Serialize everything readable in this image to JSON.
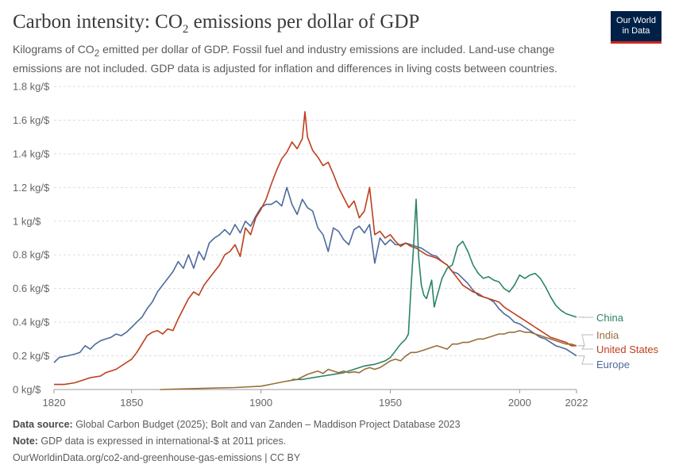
{
  "header": {
    "title_main": "Carbon intensity: CO",
    "title_sub": "2",
    "title_rest": " emissions per dollar of GDP",
    "subtitle_a": "Kilograms of CO",
    "subtitle_sub": "2",
    "subtitle_b": " emitted per dollar of GDP. Fossil fuel and industry emissions are included. Land-use change emissions are not included. GDP data is adjusted for inflation and differences in living costs between countries."
  },
  "logo": {
    "line1": "Our World",
    "line2": "in Data"
  },
  "colors": {
    "China": "#2c8465",
    "India": "#996d39",
    "United States": "#be3e1c",
    "Europe": "#4c6a9c",
    "grid": "#dddddd",
    "axis": "#666666"
  },
  "chart_data": {
    "type": "line",
    "title": "Carbon intensity: CO2 emissions per dollar of GDP",
    "ylabel": "kg/$",
    "xlim": [
      1820,
      2022
    ],
    "ylim": [
      0,
      1.8
    ],
    "x_ticks": [
      "1820",
      "1850",
      "1900",
      "1950",
      "2000",
      "2022"
    ],
    "y_ticks": [
      "0 kg/$",
      "0.2 kg/$",
      "0.4 kg/$",
      "0.6 kg/$",
      "0.8 kg/$",
      "1 kg/$",
      "1.2 kg/$",
      "1.4 kg/$",
      "1.6 kg/$",
      "1.8 kg/$"
    ],
    "series": [
      {
        "name": "Europe",
        "x": [
          1820,
          1822,
          1825,
          1828,
          1830,
          1832,
          1834,
          1836,
          1838,
          1840,
          1842,
          1844,
          1846,
          1848,
          1850,
          1852,
          1854,
          1856,
          1858,
          1860,
          1862,
          1864,
          1866,
          1868,
          1870,
          1872,
          1874,
          1876,
          1878,
          1880,
          1882,
          1884,
          1886,
          1888,
          1890,
          1892,
          1894,
          1896,
          1898,
          1900,
          1902,
          1904,
          1906,
          1908,
          1910,
          1912,
          1914,
          1916,
          1918,
          1920,
          1922,
          1924,
          1926,
          1928,
          1930,
          1932,
          1934,
          1936,
          1938,
          1940,
          1942,
          1944,
          1946,
          1948,
          1950,
          1952,
          1954,
          1956,
          1958,
          1960,
          1962,
          1964,
          1966,
          1968,
          1970,
          1972,
          1974,
          1976,
          1978,
          1980,
          1982,
          1984,
          1986,
          1988,
          1990,
          1992,
          1994,
          1996,
          1998,
          2000,
          2002,
          2004,
          2006,
          2008,
          2010,
          2012,
          2014,
          2016,
          2018,
          2020,
          2022
        ],
        "y": [
          0.16,
          0.19,
          0.2,
          0.21,
          0.22,
          0.26,
          0.24,
          0.27,
          0.29,
          0.3,
          0.31,
          0.33,
          0.32,
          0.34,
          0.37,
          0.4,
          0.43,
          0.48,
          0.52,
          0.58,
          0.62,
          0.66,
          0.7,
          0.76,
          0.72,
          0.8,
          0.72,
          0.82,
          0.77,
          0.87,
          0.9,
          0.92,
          0.95,
          0.92,
          0.98,
          0.93,
          1.0,
          0.97,
          1.03,
          1.08,
          1.1,
          1.1,
          1.12,
          1.09,
          1.2,
          1.1,
          1.04,
          1.13,
          1.08,
          1.06,
          0.96,
          0.92,
          0.82,
          0.96,
          0.94,
          0.89,
          0.86,
          0.95,
          0.97,
          0.93,
          0.98,
          0.75,
          0.9,
          0.86,
          0.89,
          0.86,
          0.86,
          0.87,
          0.86,
          0.85,
          0.84,
          0.82,
          0.8,
          0.79,
          0.76,
          0.74,
          0.7,
          0.69,
          0.66,
          0.63,
          0.59,
          0.56,
          0.55,
          0.54,
          0.52,
          0.48,
          0.45,
          0.43,
          0.4,
          0.39,
          0.37,
          0.35,
          0.33,
          0.31,
          0.3,
          0.28,
          0.26,
          0.25,
          0.24,
          0.22,
          0.2
        ]
      },
      {
        "name": "United States",
        "x": [
          1820,
          1824,
          1828,
          1830,
          1834,
          1838,
          1840,
          1844,
          1848,
          1850,
          1852,
          1854,
          1856,
          1858,
          1860,
          1862,
          1864,
          1866,
          1868,
          1870,
          1872,
          1874,
          1876,
          1878,
          1880,
          1882,
          1884,
          1886,
          1888,
          1890,
          1892,
          1894,
          1896,
          1898,
          1900,
          1902,
          1904,
          1906,
          1908,
          1910,
          1912,
          1914,
          1916,
          1917,
          1918,
          1920,
          1922,
          1924,
          1926,
          1928,
          1930,
          1932,
          1934,
          1936,
          1938,
          1940,
          1942,
          1944,
          1946,
          1948,
          1950,
          1952,
          1954,
          1956,
          1958,
          1960,
          1962,
          1964,
          1966,
          1968,
          1970,
          1972,
          1974,
          1976,
          1978,
          1980,
          1982,
          1984,
          1986,
          1988,
          1990,
          1992,
          1994,
          1996,
          1998,
          2000,
          2002,
          2004,
          2006,
          2008,
          2010,
          2012,
          2014,
          2016,
          2018,
          2020,
          2022
        ],
        "y": [
          0.03,
          0.03,
          0.04,
          0.05,
          0.07,
          0.08,
          0.1,
          0.12,
          0.16,
          0.18,
          0.22,
          0.27,
          0.32,
          0.34,
          0.35,
          0.33,
          0.36,
          0.35,
          0.42,
          0.48,
          0.54,
          0.58,
          0.56,
          0.62,
          0.66,
          0.7,
          0.74,
          0.8,
          0.82,
          0.86,
          0.79,
          0.96,
          0.92,
          1.02,
          1.07,
          1.13,
          1.22,
          1.3,
          1.37,
          1.41,
          1.47,
          1.43,
          1.49,
          1.65,
          1.5,
          1.42,
          1.38,
          1.33,
          1.35,
          1.28,
          1.2,
          1.14,
          1.08,
          1.12,
          1.02,
          1.06,
          1.2,
          0.92,
          0.94,
          0.9,
          0.92,
          0.88,
          0.85,
          0.87,
          0.85,
          0.84,
          0.82,
          0.8,
          0.79,
          0.78,
          0.76,
          0.74,
          0.7,
          0.66,
          0.62,
          0.6,
          0.58,
          0.57,
          0.55,
          0.54,
          0.53,
          0.52,
          0.49,
          0.47,
          0.45,
          0.43,
          0.41,
          0.39,
          0.37,
          0.35,
          0.33,
          0.31,
          0.3,
          0.29,
          0.28,
          0.26,
          0.26
        ]
      },
      {
        "name": "China",
        "x": [
          1912,
          1916,
          1920,
          1924,
          1928,
          1932,
          1936,
          1940,
          1944,
          1948,
          1950,
          1952,
          1954,
          1956,
          1957,
          1958,
          1959,
          1960,
          1961,
          1962,
          1963,
          1964,
          1966,
          1967,
          1968,
          1970,
          1972,
          1974,
          1976,
          1978,
          1980,
          1982,
          1984,
          1986,
          1988,
          1990,
          1992,
          1994,
          1996,
          1998,
          2000,
          2002,
          2004,
          2006,
          2008,
          2010,
          2012,
          2014,
          2016,
          2018,
          2020,
          2022
        ],
        "y": [
          0.06,
          0.06,
          0.07,
          0.08,
          0.09,
          0.1,
          0.12,
          0.14,
          0.15,
          0.17,
          0.19,
          0.23,
          0.27,
          0.3,
          0.33,
          0.6,
          0.85,
          1.13,
          0.78,
          0.62,
          0.56,
          0.54,
          0.65,
          0.49,
          0.55,
          0.66,
          0.72,
          0.74,
          0.85,
          0.88,
          0.82,
          0.74,
          0.69,
          0.66,
          0.67,
          0.65,
          0.64,
          0.6,
          0.58,
          0.62,
          0.68,
          0.66,
          0.68,
          0.69,
          0.66,
          0.61,
          0.55,
          0.5,
          0.47,
          0.45,
          0.44,
          0.43
        ]
      },
      {
        "name": "India",
        "x": [
          1861,
          1870,
          1880,
          1890,
          1900,
          1905,
          1910,
          1914,
          1916,
          1918,
          1920,
          1922,
          1924,
          1926,
          1928,
          1930,
          1932,
          1934,
          1936,
          1938,
          1940,
          1942,
          1944,
          1946,
          1948,
          1950,
          1952,
          1954,
          1956,
          1958,
          1960,
          1962,
          1964,
          1966,
          1968,
          1970,
          1972,
          1974,
          1976,
          1978,
          1980,
          1982,
          1984,
          1986,
          1988,
          1990,
          1992,
          1994,
          1996,
          1998,
          2000,
          2002,
          2004,
          2006,
          2008,
          2010,
          2012,
          2014,
          2016,
          2018,
          2020,
          2022
        ],
        "y": [
          0.0,
          0.004,
          0.008,
          0.012,
          0.02,
          0.035,
          0.05,
          0.06,
          0.075,
          0.09,
          0.1,
          0.11,
          0.095,
          0.12,
          0.11,
          0.1,
          0.11,
          0.1,
          0.105,
          0.1,
          0.12,
          0.13,
          0.12,
          0.13,
          0.15,
          0.17,
          0.18,
          0.17,
          0.2,
          0.22,
          0.22,
          0.23,
          0.24,
          0.25,
          0.26,
          0.25,
          0.24,
          0.27,
          0.27,
          0.28,
          0.28,
          0.29,
          0.3,
          0.3,
          0.31,
          0.32,
          0.33,
          0.33,
          0.34,
          0.34,
          0.35,
          0.34,
          0.34,
          0.33,
          0.32,
          0.31,
          0.3,
          0.29,
          0.28,
          0.27,
          0.27,
          0.26
        ]
      }
    ]
  },
  "footer": {
    "source_label": "Data source:",
    "source_text": " Global Carbon Budget (2025); Bolt and van Zanden – Maddison Project Database 2023",
    "note_label": "Note:",
    "note_text": " GDP data is expressed in international-$ at 2011 prices.",
    "link_text": "OurWorldinData.org/co2-and-greenhouse-gas-emissions",
    "license": " | CC BY"
  }
}
